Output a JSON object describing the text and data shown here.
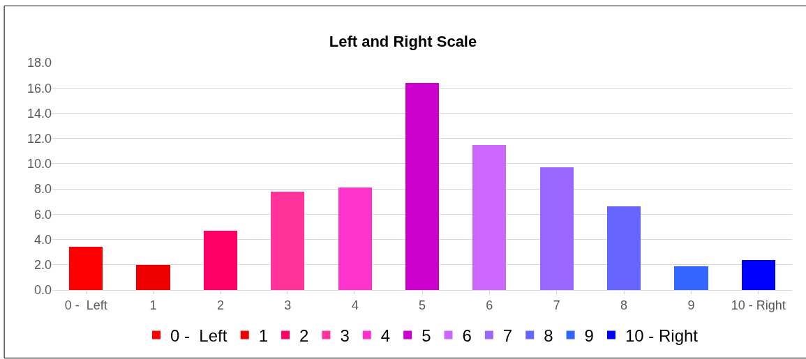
{
  "chart_data": {
    "type": "bar",
    "title": "Left and Right Scale",
    "categories": [
      "0 -  Left",
      "1",
      "2",
      "3",
      "4",
      "5",
      "6",
      "7",
      "8",
      "9",
      "10 - Right"
    ],
    "series": [
      {
        "name": "0 -  Left",
        "color": "#ff0000",
        "values": [
          3.4,
          null,
          null,
          null,
          null,
          null,
          null,
          null,
          null,
          null,
          null
        ]
      },
      {
        "name": "1",
        "color": "#ee0000",
        "values": [
          null,
          2.0,
          null,
          null,
          null,
          null,
          null,
          null,
          null,
          null,
          null
        ]
      },
      {
        "name": "2",
        "color": "#ff0066",
        "values": [
          null,
          null,
          4.7,
          null,
          null,
          null,
          null,
          null,
          null,
          null,
          null
        ]
      },
      {
        "name": "3",
        "color": "#ff3399",
        "values": [
          null,
          null,
          null,
          7.8,
          null,
          null,
          null,
          null,
          null,
          null,
          null
        ]
      },
      {
        "name": "4",
        "color": "#ff33cc",
        "values": [
          null,
          null,
          null,
          null,
          8.1,
          null,
          null,
          null,
          null,
          null,
          null
        ]
      },
      {
        "name": "5",
        "color": "#cc00cc",
        "values": [
          null,
          null,
          null,
          null,
          null,
          16.4,
          null,
          null,
          null,
          null,
          null
        ]
      },
      {
        "name": "6",
        "color": "#cc66ff",
        "values": [
          null,
          null,
          null,
          null,
          null,
          null,
          11.5,
          null,
          null,
          null,
          null
        ]
      },
      {
        "name": "7",
        "color": "#9966ff",
        "values": [
          null,
          null,
          null,
          null,
          null,
          null,
          null,
          9.7,
          null,
          null,
          null
        ]
      },
      {
        "name": "8",
        "color": "#6666ff",
        "values": [
          null,
          null,
          null,
          null,
          null,
          null,
          null,
          null,
          6.6,
          null,
          null
        ]
      },
      {
        "name": "9",
        "color": "#3366ff",
        "values": [
          null,
          null,
          null,
          null,
          null,
          null,
          null,
          null,
          null,
          1.9,
          null
        ]
      },
      {
        "name": "10 - Right",
        "color": "#0000ff",
        "values": [
          null,
          null,
          null,
          null,
          null,
          null,
          null,
          null,
          null,
          null,
          2.4
        ]
      }
    ],
    "stacked": true,
    "ylim": [
      0,
      18
    ],
    "yticks": [
      {
        "value": 0,
        "label": "0.0"
      },
      {
        "value": 2,
        "label": "2.0"
      },
      {
        "value": 4,
        "label": "4.0"
      },
      {
        "value": 6,
        "label": "6.0"
      },
      {
        "value": 8,
        "label": "8.0"
      },
      {
        "value": 10,
        "label": "10.0"
      },
      {
        "value": 12,
        "label": "12.0"
      },
      {
        "value": 14,
        "label": "14.0"
      },
      {
        "value": 16,
        "label": "16.0"
      },
      {
        "value": 18,
        "label": "18.0"
      }
    ],
    "grid": "y",
    "legend": "bottom"
  }
}
